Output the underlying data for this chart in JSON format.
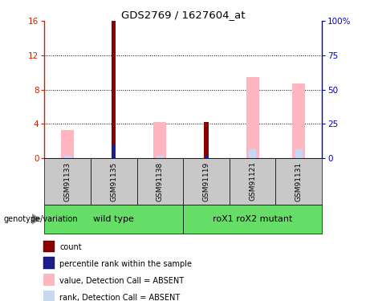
{
  "title": "GDS2769 / 1627604_at",
  "samples": [
    "GSM91133",
    "GSM91135",
    "GSM91138",
    "GSM91119",
    "GSM91121",
    "GSM91131"
  ],
  "count_values": [
    0,
    16,
    0,
    4.2,
    0,
    0
  ],
  "percentile_rank_values": [
    0,
    1.6,
    0,
    0.3,
    0,
    0
  ],
  "value_absent": [
    3.3,
    0,
    4.2,
    0,
    9.5,
    8.7
  ],
  "rank_absent": [
    0.3,
    0,
    0.3,
    0,
    1.0,
    1.0
  ],
  "ylim_left": [
    0,
    16
  ],
  "ylim_right": [
    0,
    100
  ],
  "yticks_left": [
    0,
    4,
    8,
    12,
    16
  ],
  "yticks_right": [
    0,
    25,
    50,
    75,
    100
  ],
  "ytick_right_labels": [
    "0",
    "25",
    "50",
    "75",
    "100%"
  ],
  "colors": {
    "count": "#8B0000",
    "percentile_rank": "#1C1C8B",
    "value_absent": "#FFB6C1",
    "rank_absent": "#C8D8F0",
    "left_axis": "#CC2200",
    "right_axis": "#0000BB",
    "grid": "black",
    "background": "white",
    "group_box": "#66DD66",
    "sample_box": "#C8C8C8"
  },
  "legend_items": [
    {
      "label": "count",
      "color": "#8B0000"
    },
    {
      "label": "percentile rank within the sample",
      "color": "#1C1C8B"
    },
    {
      "label": "value, Detection Call = ABSENT",
      "color": "#FFB6C1"
    },
    {
      "label": "rank, Detection Call = ABSENT",
      "color": "#C8D8F0"
    }
  ],
  "genotype_label": "genotype/variation",
  "wt_label": "wild type",
  "mut_label": "roX1 roX2 mutant"
}
